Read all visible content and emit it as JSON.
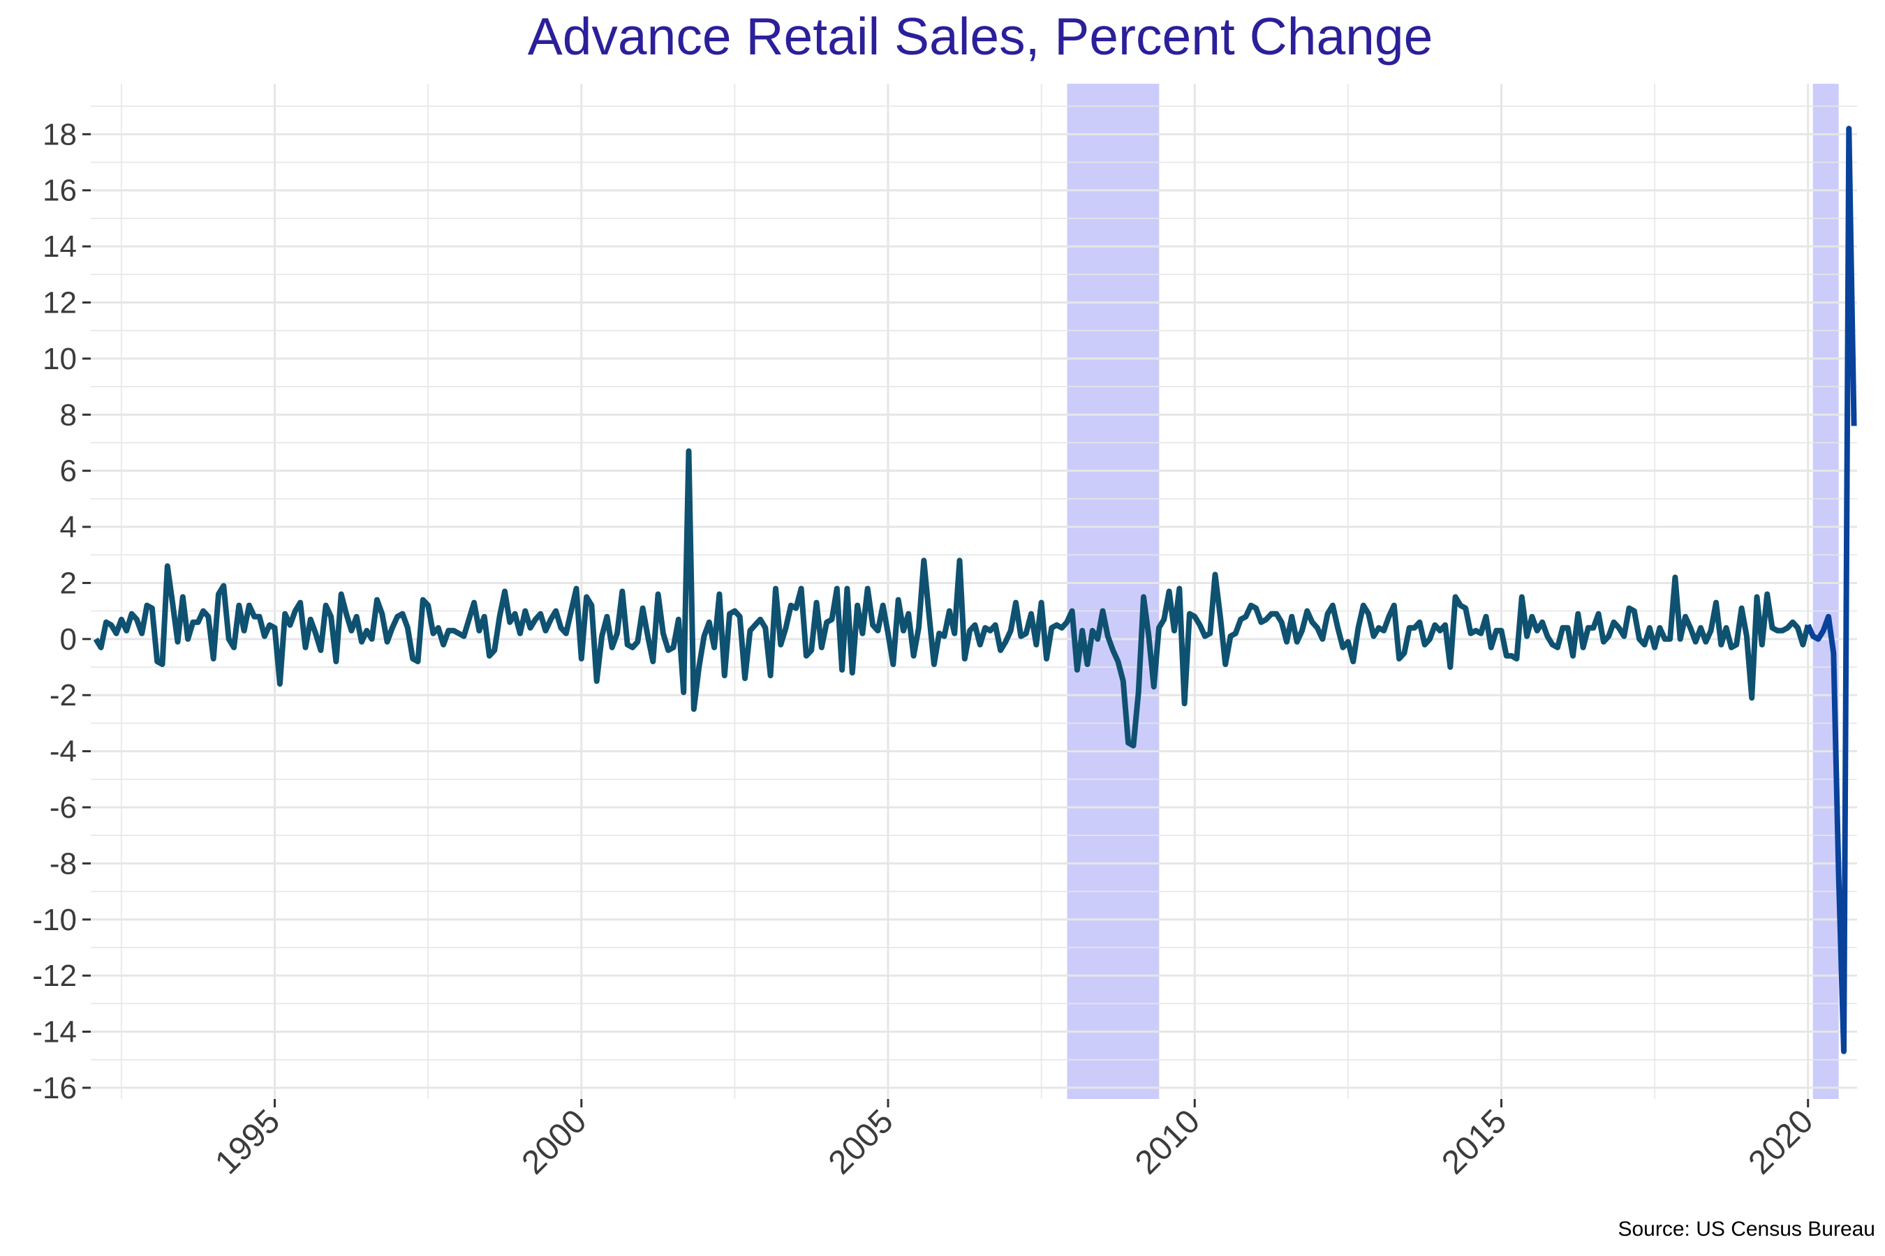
{
  "chart_data": {
    "type": "line",
    "title": "Advance Retail Sales, Percent Change",
    "xlabel": "",
    "ylabel": "",
    "source": "Source: US Census Bureau",
    "xlim": [
      1992.0,
      2020.8
    ],
    "ylim": [
      -16.4,
      19.8
    ],
    "x_ticks": [
      1995,
      2000,
      2005,
      2010,
      2015,
      2020
    ],
    "x_tick_labels": [
      "1995",
      "2000",
      "2005",
      "2010",
      "2015",
      "2020"
    ],
    "y_ticks": [
      -16,
      -14,
      -12,
      -10,
      -8,
      -6,
      -4,
      -2,
      0,
      2,
      4,
      6,
      8,
      10,
      12,
      14,
      16,
      18
    ],
    "y_tick_labels": [
      "-16",
      "-14",
      "-12",
      "-10",
      "-8",
      "-6",
      "-4",
      "-2",
      "0",
      "2",
      "4",
      "6",
      "8",
      "10",
      "12",
      "14",
      "16",
      "18"
    ],
    "grid": true,
    "legend": "none",
    "recessions": [
      {
        "start": 2007.92,
        "end": 2009.42
      },
      {
        "start": 2020.08,
        "end": 2020.5
      }
    ],
    "series": [
      {
        "start_year": 1992,
        "start_month": 2,
        "frequency": "monthly",
        "values": [
          0.0,
          -0.3,
          0.6,
          0.5,
          0.2,
          0.7,
          0.3,
          0.9,
          0.7,
          0.2,
          1.2,
          1.1,
          -0.8,
          -0.9,
          2.6,
          1.3,
          -0.1,
          1.5,
          0.0,
          0.6,
          0.6,
          1.0,
          0.8,
          -0.7,
          1.6,
          1.9,
          0.0,
          -0.3,
          1.2,
          0.3,
          1.2,
          0.8,
          0.8,
          0.1,
          0.5,
          0.4,
          -1.6,
          0.9,
          0.5,
          1.0,
          1.3,
          -0.3,
          0.7,
          0.2,
          -0.4,
          1.2,
          0.8,
          -0.8,
          1.6,
          0.9,
          0.3,
          0.8,
          -0.1,
          0.3,
          0.0,
          1.4,
          0.9,
          -0.1,
          0.4,
          0.8,
          0.9,
          0.4,
          -0.7,
          -0.8,
          1.4,
          1.2,
          0.2,
          0.4,
          -0.2,
          0.3,
          0.3,
          0.2,
          0.1,
          0.7,
          1.3,
          0.3,
          0.8,
          -0.6,
          -0.4,
          0.8,
          1.7,
          0.6,
          0.9,
          0.2,
          1.0,
          0.4,
          0.7,
          0.9,
          0.3,
          0.7,
          1.0,
          0.4,
          0.2,
          1.0,
          1.8,
          -0.7,
          1.5,
          1.2,
          -1.5,
          0.1,
          0.8,
          -0.3,
          0.2,
          1.7,
          -0.2,
          -0.3,
          -0.1,
          1.1,
          0.1,
          -0.8,
          1.6,
          0.2,
          -0.4,
          -0.3,
          0.7,
          -1.9,
          6.7,
          -2.5,
          -1.0,
          0.1,
          0.6,
          -0.3,
          1.6,
          -1.3,
          0.9,
          1.0,
          0.8,
          -1.4,
          0.3,
          0.5,
          0.7,
          0.4,
          -1.3,
          1.8,
          -0.2,
          0.4,
          1.2,
          1.1,
          1.8,
          -0.6,
          -0.4,
          1.3,
          -0.3,
          0.6,
          0.7,
          1.8,
          -1.1,
          1.8,
          -1.2,
          1.2,
          0.2,
          1.8,
          0.5,
          0.3,
          1.2,
          0.2,
          -0.9,
          1.4,
          0.3,
          0.9,
          -0.6,
          0.4,
          2.8,
          0.9,
          -0.9,
          0.2,
          0.1,
          1.0,
          0.2,
          2.8,
          -0.7,
          0.3,
          0.5,
          -0.2,
          0.4,
          0.3,
          0.5,
          -0.4,
          -0.1,
          0.3,
          1.3,
          0.1,
          0.2,
          0.9,
          -0.2,
          1.3,
          -0.7,
          0.4,
          0.5,
          0.4,
          0.6,
          1.0,
          -1.1,
          0.3,
          -0.9,
          0.3,
          0.0,
          1.0,
          0.1,
          -0.4,
          -0.8,
          -1.5,
          -3.7,
          -3.8,
          -1.9,
          1.5,
          0.1,
          -1.7,
          0.4,
          0.7,
          1.7,
          0.3,
          1.8,
          -2.3,
          0.9,
          0.8,
          0.5,
          0.1,
          0.2,
          2.3,
          0.8,
          -0.9,
          0.1,
          0.2,
          0.7,
          0.8,
          1.2,
          1.1,
          0.6,
          0.7,
          0.9,
          0.9,
          0.6,
          -0.1,
          0.8,
          -0.1,
          0.3,
          1.0,
          0.6,
          0.4,
          0.0,
          0.9,
          1.2,
          0.4,
          -0.3,
          -0.1,
          -0.8,
          0.4,
          1.2,
          0.9,
          0.1,
          0.4,
          0.3,
          0.8,
          1.2,
          -0.7,
          -0.5,
          0.4,
          0.4,
          0.6,
          -0.2,
          0.0,
          0.5,
          0.3,
          0.5,
          -1.0,
          1.5,
          1.2,
          1.1,
          0.2,
          0.3,
          0.2,
          0.8,
          -0.3,
          0.3,
          0.3,
          -0.6,
          -0.6,
          -0.7,
          1.5,
          0.1,
          0.8,
          0.3,
          0.6,
          0.1,
          -0.2,
          -0.3,
          0.4,
          0.4,
          -0.6,
          0.9,
          -0.3,
          0.4,
          0.4,
          0.9,
          -0.1,
          0.1,
          0.6,
          0.4,
          0.1,
          1.1,
          1.0,
          0.0,
          -0.2,
          0.4,
          -0.3,
          0.4,
          0.0,
          0.0,
          2.2,
          0.0,
          0.8,
          0.4,
          -0.1,
          0.4,
          -0.1,
          0.3,
          1.3,
          -0.2,
          0.4,
          -0.3,
          -0.2,
          1.1,
          0.1,
          -2.1,
          1.5,
          -0.2,
          1.6,
          0.4,
          0.3,
          0.3,
          0.4,
          0.6,
          0.4,
          -0.2,
          0.5,
          0.1,
          0.0,
          0.3,
          0.8,
          -0.5,
          -8.4,
          -14.7,
          18.2,
          7.6
        ]
      }
    ],
    "colors": {
      "line": "#0f5170",
      "line_2020": "#08429a",
      "recession_fill": "#7a7af5",
      "recession_opacity": "0.38",
      "grid": "#e6e6e6",
      "title": "#2b1f9a",
      "tick_text": "#3b3b3b"
    }
  }
}
